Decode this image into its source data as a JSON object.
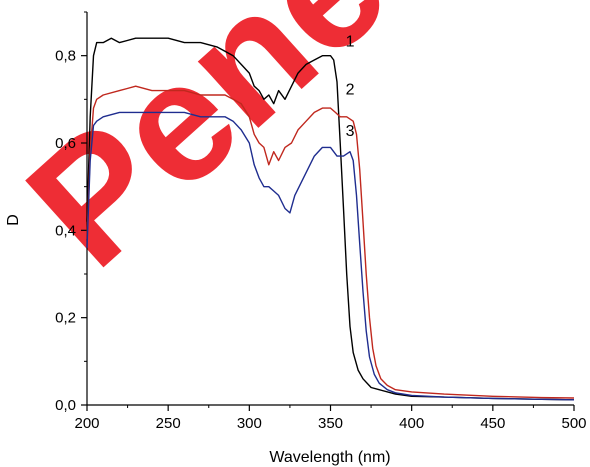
{
  "chart_data": {
    "type": "line",
    "xlabel": "Wavelength (nm)",
    "ylabel": "D",
    "xlim": [
      200,
      500
    ],
    "ylim": [
      0,
      0.9
    ],
    "x_ticks": [
      200,
      250,
      300,
      350,
      400,
      450,
      500
    ],
    "y_ticks": [
      0.0,
      0.2,
      0.4,
      0.6,
      0.8
    ],
    "x_tick_labels": [
      "200",
      "250",
      "300",
      "350",
      "400",
      "450",
      "500"
    ],
    "y_tick_labels": [
      "0,0",
      "0,2",
      "0,4",
      "0,6",
      "0,8"
    ],
    "grid": false,
    "series": [
      {
        "name": "1",
        "color": "#000000",
        "points": [
          [
            200,
            0.42
          ],
          [
            202,
            0.66
          ],
          [
            204,
            0.8
          ],
          [
            206,
            0.83
          ],
          [
            210,
            0.83
          ],
          [
            215,
            0.84
          ],
          [
            220,
            0.83
          ],
          [
            230,
            0.84
          ],
          [
            240,
            0.84
          ],
          [
            250,
            0.84
          ],
          [
            260,
            0.83
          ],
          [
            270,
            0.83
          ],
          [
            280,
            0.82
          ],
          [
            285,
            0.81
          ],
          [
            290,
            0.8
          ],
          [
            295,
            0.78
          ],
          [
            300,
            0.76
          ],
          [
            303,
            0.73
          ],
          [
            306,
            0.72
          ],
          [
            309,
            0.7
          ],
          [
            312,
            0.71
          ],
          [
            315,
            0.69
          ],
          [
            318,
            0.72
          ],
          [
            322,
            0.7
          ],
          [
            326,
            0.73
          ],
          [
            330,
            0.76
          ],
          [
            335,
            0.78
          ],
          [
            340,
            0.79
          ],
          [
            345,
            0.8
          ],
          [
            350,
            0.8
          ],
          [
            352,
            0.79
          ],
          [
            354,
            0.74
          ],
          [
            356,
            0.6
          ],
          [
            358,
            0.45
          ],
          [
            360,
            0.3
          ],
          [
            362,
            0.18
          ],
          [
            364,
            0.12
          ],
          [
            367,
            0.08
          ],
          [
            370,
            0.06
          ],
          [
            375,
            0.04
          ],
          [
            380,
            0.035
          ],
          [
            390,
            0.025
          ],
          [
            400,
            0.02
          ],
          [
            420,
            0.018
          ],
          [
            450,
            0.015
          ],
          [
            480,
            0.013
          ],
          [
            500,
            0.012
          ]
        ]
      },
      {
        "name": "2",
        "color": "#c0281e",
        "points": [
          [
            200,
            0.38
          ],
          [
            202,
            0.58
          ],
          [
            204,
            0.68
          ],
          [
            206,
            0.7
          ],
          [
            210,
            0.71
          ],
          [
            220,
            0.72
          ],
          [
            230,
            0.73
          ],
          [
            240,
            0.72
          ],
          [
            250,
            0.72
          ],
          [
            260,
            0.72
          ],
          [
            270,
            0.71
          ],
          [
            280,
            0.71
          ],
          [
            285,
            0.71
          ],
          [
            290,
            0.7
          ],
          [
            295,
            0.69
          ],
          [
            300,
            0.66
          ],
          [
            303,
            0.62
          ],
          [
            306,
            0.6
          ],
          [
            309,
            0.59
          ],
          [
            312,
            0.55
          ],
          [
            315,
            0.58
          ],
          [
            318,
            0.56
          ],
          [
            322,
            0.59
          ],
          [
            326,
            0.6
          ],
          [
            330,
            0.63
          ],
          [
            335,
            0.65
          ],
          [
            340,
            0.67
          ],
          [
            345,
            0.68
          ],
          [
            350,
            0.68
          ],
          [
            353,
            0.67
          ],
          [
            356,
            0.66
          ],
          [
            360,
            0.66
          ],
          [
            364,
            0.65
          ],
          [
            366,
            0.62
          ],
          [
            368,
            0.54
          ],
          [
            370,
            0.42
          ],
          [
            372,
            0.3
          ],
          [
            374,
            0.2
          ],
          [
            376,
            0.13
          ],
          [
            378,
            0.09
          ],
          [
            381,
            0.06
          ],
          [
            385,
            0.045
          ],
          [
            390,
            0.035
          ],
          [
            400,
            0.03
          ],
          [
            420,
            0.025
          ],
          [
            450,
            0.02
          ],
          [
            480,
            0.017
          ],
          [
            500,
            0.016
          ]
        ]
      },
      {
        "name": "3",
        "color": "#1f2d8f",
        "points": [
          [
            200,
            0.36
          ],
          [
            202,
            0.56
          ],
          [
            204,
            0.64
          ],
          [
            206,
            0.65
          ],
          [
            210,
            0.66
          ],
          [
            220,
            0.67
          ],
          [
            230,
            0.67
          ],
          [
            240,
            0.67
          ],
          [
            250,
            0.67
          ],
          [
            260,
            0.67
          ],
          [
            270,
            0.66
          ],
          [
            280,
            0.66
          ],
          [
            285,
            0.66
          ],
          [
            290,
            0.65
          ],
          [
            295,
            0.63
          ],
          [
            300,
            0.6
          ],
          [
            303,
            0.55
          ],
          [
            306,
            0.52
          ],
          [
            309,
            0.5
          ],
          [
            312,
            0.5
          ],
          [
            315,
            0.49
          ],
          [
            318,
            0.48
          ],
          [
            322,
            0.45
          ],
          [
            325,
            0.44
          ],
          [
            328,
            0.48
          ],
          [
            332,
            0.51
          ],
          [
            336,
            0.54
          ],
          [
            340,
            0.57
          ],
          [
            345,
            0.59
          ],
          [
            350,
            0.59
          ],
          [
            354,
            0.57
          ],
          [
            358,
            0.57
          ],
          [
            362,
            0.58
          ],
          [
            364,
            0.56
          ],
          [
            366,
            0.48
          ],
          [
            368,
            0.37
          ],
          [
            370,
            0.26
          ],
          [
            372,
            0.17
          ],
          [
            374,
            0.11
          ],
          [
            377,
            0.07
          ],
          [
            380,
            0.05
          ],
          [
            385,
            0.035
          ],
          [
            390,
            0.028
          ],
          [
            400,
            0.022
          ],
          [
            420,
            0.018
          ],
          [
            450,
            0.015
          ],
          [
            480,
            0.013
          ],
          [
            500,
            0.012
          ]
        ]
      }
    ],
    "curve_labels": [
      {
        "text": "1",
        "x": 351,
        "y": 0.835
      },
      {
        "text": "2",
        "x": 351,
        "y": 0.725
      },
      {
        "text": "3",
        "x": 351,
        "y": 0.63
      }
    ]
  },
  "watermark": {
    "text": "Pene",
    "color": "#ed1c24"
  }
}
